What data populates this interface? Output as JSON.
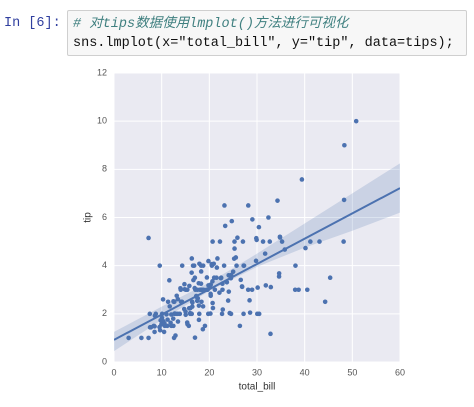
{
  "cell": {
    "prompt": "In [6]:",
    "code": [
      "# 对tips数据使用lmplot()方法进行可视化",
      "sns.lmplot(x=\"total_bill\", y=\"tip\", data=tips);"
    ]
  },
  "chart_data": {
    "type": "scatter",
    "xlabel": "total_bill",
    "ylabel": "tip",
    "color": "#4c72b0",
    "grid": true,
    "xlim": [
      0,
      60
    ],
    "ylim": [
      0,
      12
    ],
    "xticks": [
      0,
      10,
      20,
      30,
      40,
      50,
      60
    ],
    "yticks": [
      0,
      2,
      4,
      6,
      8,
      10,
      12
    ],
    "points": [
      [
        16.99,
        1.01
      ],
      [
        10.34,
        1.66
      ],
      [
        21.01,
        3.5
      ],
      [
        23.68,
        3.31
      ],
      [
        24.59,
        3.61
      ],
      [
        25.29,
        4.71
      ],
      [
        8.77,
        2
      ],
      [
        26.88,
        3.12
      ],
      [
        15.04,
        1.96
      ],
      [
        14.78,
        3.23
      ],
      [
        10.27,
        1.71
      ],
      [
        35.26,
        5
      ],
      [
        15.42,
        1.57
      ],
      [
        18.43,
        3
      ],
      [
        14.83,
        3.02
      ],
      [
        21.58,
        3.92
      ],
      [
        10.33,
        1.67
      ],
      [
        16.29,
        3.71
      ],
      [
        16.97,
        3.5
      ],
      [
        20.65,
        3.35
      ],
      [
        17.92,
        4.08
      ],
      [
        20.29,
        2.75
      ],
      [
        15.77,
        2.23
      ],
      [
        39.42,
        7.58
      ],
      [
        19.82,
        3.18
      ],
      [
        17.81,
        2.34
      ],
      [
        13.37,
        2
      ],
      [
        12.69,
        2
      ],
      [
        21.7,
        4.3
      ],
      [
        19.65,
        3
      ],
      [
        9.55,
        1.45
      ],
      [
        18.35,
        2.5
      ],
      [
        15.06,
        3
      ],
      [
        20.69,
        2.45
      ],
      [
        17.78,
        3.27
      ],
      [
        24.06,
        3.6
      ],
      [
        16.31,
        2
      ],
      [
        16.93,
        3.07
      ],
      [
        18.69,
        2.31
      ],
      [
        31.27,
        5
      ],
      [
        16.04,
        2.24
      ],
      [
        17.46,
        2.54
      ],
      [
        13.94,
        3.06
      ],
      [
        9.68,
        1.32
      ],
      [
        30.4,
        5.6
      ],
      [
        18.29,
        3
      ],
      [
        22.23,
        5
      ],
      [
        32.4,
        6
      ],
      [
        28.55,
        2.05
      ],
      [
        18.04,
        3
      ],
      [
        12.54,
        2.5
      ],
      [
        10.29,
        2.6
      ],
      [
        34.81,
        5.2
      ],
      [
        9.94,
        1.56
      ],
      [
        25.56,
        4.34
      ],
      [
        19.49,
        3.51
      ],
      [
        38.01,
        3
      ],
      [
        26.41,
        1.5
      ],
      [
        11.24,
        1.76
      ],
      [
        48.27,
        6.73
      ],
      [
        20.29,
        3.21
      ],
      [
        13.81,
        2
      ],
      [
        11.02,
        1.98
      ],
      [
        18.29,
        3.76
      ],
      [
        17.59,
        2.64
      ],
      [
        20.08,
        3.15
      ],
      [
        16.45,
        2.47
      ],
      [
        3.07,
        1
      ],
      [
        20.23,
        2.01
      ],
      [
        15.01,
        2.09
      ],
      [
        12.02,
        1.97
      ],
      [
        17.07,
        3
      ],
      [
        26.86,
        3.14
      ],
      [
        25.28,
        5
      ],
      [
        14.73,
        2.2
      ],
      [
        10.51,
        1.25
      ],
      [
        27.2,
        4
      ],
      [
        22.76,
        3
      ],
      [
        17.29,
        2.71
      ],
      [
        19.44,
        3
      ],
      [
        16.66,
        3.4
      ],
      [
        10.07,
        1.83
      ],
      [
        32.68,
        5
      ],
      [
        15.98,
        2.03
      ],
      [
        34.83,
        5.17
      ],
      [
        13.03,
        2
      ],
      [
        18.28,
        4
      ],
      [
        24.71,
        5.85
      ],
      [
        21.16,
        3
      ],
      [
        28.97,
        3
      ],
      [
        22.49,
        3.5
      ],
      [
        5.75,
        1
      ],
      [
        16.32,
        4.3
      ],
      [
        22.75,
        3.25
      ],
      [
        40.17,
        4.73
      ],
      [
        27.28,
        4
      ],
      [
        12.03,
        1.5
      ],
      [
        12.46,
        1.5
      ],
      [
        11.35,
        2.5
      ],
      [
        15.38,
        3
      ],
      [
        44.3,
        2.5
      ],
      [
        22.42,
        3.48
      ],
      [
        20.92,
        4.08
      ],
      [
        15.36,
        1.64
      ],
      [
        20.49,
        4.06
      ],
      [
        25.21,
        4.29
      ],
      [
        14.31,
        4
      ],
      [
        14,
        3
      ],
      [
        7.25,
        1
      ],
      [
        38.07,
        4
      ],
      [
        23.95,
        2.55
      ],
      [
        25.71,
        4
      ],
      [
        29.93,
        5.07
      ],
      [
        10.65,
        1.5
      ],
      [
        12.43,
        1.8
      ],
      [
        24.08,
        2.92
      ],
      [
        11.69,
        2.31
      ],
      [
        13.42,
        1.68
      ],
      [
        14.26,
        2.5
      ],
      [
        12.48,
        2.52
      ],
      [
        29.8,
        4.2
      ],
      [
        8.52,
        1.48
      ],
      [
        22.82,
        2.18
      ],
      [
        19.08,
        1.5
      ],
      [
        20.27,
        2.83
      ],
      [
        11.17,
        1.5
      ],
      [
        18.26,
        3.25
      ],
      [
        8.51,
        1.25
      ],
      [
        16,
        2
      ],
      [
        13.16,
        2.75
      ],
      [
        34.3,
        6.7
      ],
      [
        41.19,
        5
      ],
      [
        27.05,
        5
      ],
      [
        16.43,
        2.3
      ],
      [
        8.35,
        1.5
      ],
      [
        18.64,
        1.36
      ],
      [
        11.87,
        1.63
      ],
      [
        9.78,
        1.73
      ],
      [
        7.51,
        2
      ],
      [
        14.07,
        2.5
      ],
      [
        17.26,
        2.74
      ],
      [
        24.55,
        2
      ],
      [
        19.77,
        2
      ],
      [
        29.85,
        5.14
      ],
      [
        48.17,
        5
      ],
      [
        25,
        3.75
      ],
      [
        13.39,
        2.61
      ],
      [
        21.5,
        3.5
      ],
      [
        12.66,
        2.5
      ],
      [
        17.51,
        3
      ],
      [
        24.52,
        3.48
      ],
      [
        20.76,
        2.24
      ],
      [
        31.71,
        4.5
      ],
      [
        10.59,
        1.61
      ],
      [
        50.81,
        10
      ],
      [
        15.81,
        3.16
      ],
      [
        7.25,
        5.15
      ],
      [
        31.85,
        3.18
      ],
      [
        16.82,
        4
      ],
      [
        32.9,
        3.11
      ],
      [
        17.89,
        2
      ],
      [
        9.6,
        4
      ],
      [
        34.63,
        3.55
      ],
      [
        34.65,
        3.68
      ],
      [
        23.33,
        5.65
      ],
      [
        45.35,
        3.5
      ],
      [
        23.17,
        6.5
      ],
      [
        40.55,
        3
      ],
      [
        20.69,
        5
      ],
      [
        30.46,
        2
      ],
      [
        23.1,
        4
      ],
      [
        15.69,
        1.5
      ],
      [
        19.81,
        4.19
      ],
      [
        28.44,
        2.56
      ],
      [
        16.58,
        4
      ],
      [
        7.56,
        1.44
      ],
      [
        43.11,
        5
      ],
      [
        18.71,
        4
      ],
      [
        12.74,
        2.01
      ],
      [
        16.4,
        2.5
      ],
      [
        20.53,
        4
      ],
      [
        26.59,
        3.41
      ],
      [
        38.73,
        3
      ],
      [
        24.27,
        2.03
      ],
      [
        30.06,
        2
      ],
      [
        25.89,
        5.16
      ],
      [
        48.33,
        9
      ],
      [
        28.17,
        6.5
      ],
      [
        12.9,
        1.1
      ],
      [
        28.15,
        3
      ],
      [
        7.74,
        1.44
      ],
      [
        30.14,
        3.09
      ],
      [
        8.58,
        1.92
      ],
      [
        10.09,
        2
      ],
      [
        22.12,
        2.88
      ],
      [
        11.61,
        3.39
      ],
      [
        12.6,
        1
      ],
      [
        32.83,
        1.17
      ],
      [
        35.83,
        4.67
      ],
      [
        29.03,
        5.92
      ],
      [
        27.18,
        2
      ],
      [
        22.67,
        2
      ],
      [
        17.82,
        1.75
      ],
      [
        18.78,
        3
      ]
    ],
    "fit": {
      "x": [
        0,
        60
      ],
      "y": [
        0.92,
        7.22
      ]
    },
    "ci": {
      "x": [
        0,
        10,
        20,
        30,
        40,
        50,
        60
      ],
      "lower": [
        0.45,
        1.75,
        2.95,
        3.95,
        4.75,
        5.45,
        6.2
      ],
      "upper": [
        1.25,
        2.3,
        3.3,
        4.5,
        5.75,
        7.0,
        8.25
      ]
    }
  }
}
